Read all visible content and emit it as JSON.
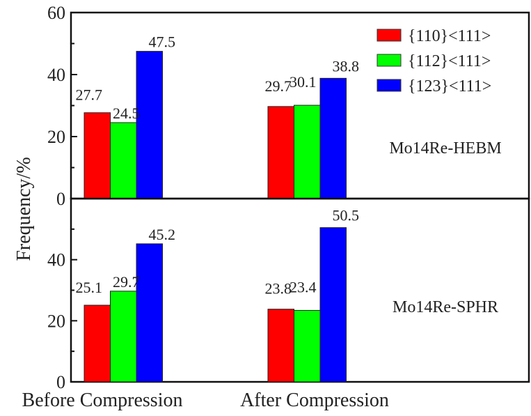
{
  "chart_data": {
    "type": "bar",
    "ylabel": "Frequency/%",
    "xlabel": "",
    "categories": [
      "Before Compression",
      "After Compression"
    ],
    "legend": {
      "placement": "top-right",
      "entries": [
        {
          "name": "{110}<111>",
          "color": "#ff0000"
        },
        {
          "name": "{112}<111>",
          "color": "#00ff00"
        },
        {
          "name": "{123}<111>",
          "color": "#0000ff"
        }
      ]
    },
    "panels": [
      {
        "label": "Mo14Re-HEBM",
        "ylim": [
          0,
          60
        ],
        "yticks": [
          "0",
          "20",
          "40",
          "60"
        ],
        "series": [
          {
            "name": "{110}<111>",
            "values": [
              27.7,
              29.7
            ],
            "labels": [
              "27.7",
              "29.7"
            ]
          },
          {
            "name": "{112}<111>",
            "values": [
              24.5,
              30.1
            ],
            "labels": [
              "24.5",
              "30.1"
            ]
          },
          {
            "name": "{123}<111>",
            "values": [
              47.5,
              38.8
            ],
            "labels": [
              "47.5",
              "38.8"
            ]
          }
        ]
      },
      {
        "label": "Mo14Re-SPHR",
        "ylim": [
          0,
          60
        ],
        "yticks": [
          "0",
          "20",
          "40"
        ],
        "series": [
          {
            "name": "{110}<111>",
            "values": [
              25.1,
              23.8
            ],
            "labels": [
              "25.1",
              "23.8"
            ]
          },
          {
            "name": "{112}<111>",
            "values": [
              29.7,
              23.4
            ],
            "labels": [
              "29.7",
              "23.4"
            ]
          },
          {
            "name": "{123}<111>",
            "values": [
              45.2,
              50.5
            ],
            "labels": [
              "45.2",
              "50.5"
            ]
          }
        ]
      }
    ]
  }
}
